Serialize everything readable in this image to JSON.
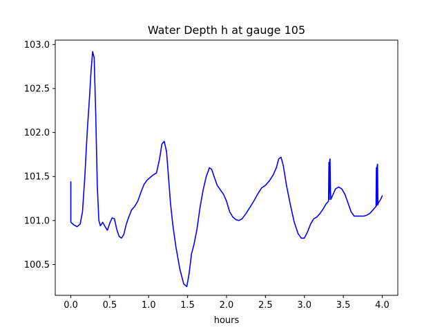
{
  "chart_data": {
    "type": "line",
    "title": "Water Depth h at gauge 105",
    "xlabel": "hours",
    "ylabel": "",
    "xlim": [
      -0.2,
      4.2
    ],
    "ylim": [
      100.15,
      103.05
    ],
    "xticks": [
      0.0,
      0.5,
      1.0,
      1.5,
      2.0,
      2.5,
      3.0,
      3.5,
      4.0
    ],
    "xtick_labels": [
      "0.0",
      "0.5",
      "1.0",
      "1.5",
      "2.0",
      "2.5",
      "3.0",
      "3.5",
      "4.0"
    ],
    "yticks": [
      100.5,
      101.0,
      101.5,
      102.0,
      102.5,
      103.0
    ],
    "ytick_labels": [
      "100.5",
      "101.0",
      "101.5",
      "102.0",
      "102.5",
      "103.0"
    ],
    "grid": false,
    "series": [
      {
        "color": "#0000ff",
        "x": [
          0.0,
          0.0,
          0.0,
          0.04,
          0.08,
          0.12,
          0.15,
          0.18,
          0.21,
          0.24,
          0.26,
          0.28,
          0.3,
          0.32,
          0.34,
          0.36,
          0.38,
          0.41,
          0.44,
          0.47,
          0.5,
          0.53,
          0.56,
          0.59,
          0.62,
          0.65,
          0.68,
          0.71,
          0.74,
          0.78,
          0.82,
          0.86,
          0.9,
          0.94,
          0.98,
          1.02,
          1.06,
          1.1,
          1.14,
          1.17,
          1.2,
          1.23,
          1.25,
          1.28,
          1.31,
          1.35,
          1.4,
          1.45,
          1.49,
          1.52,
          1.55,
          1.58,
          1.62,
          1.66,
          1.7,
          1.74,
          1.78,
          1.81,
          1.84,
          1.88,
          1.92,
          1.96,
          2.0,
          2.04,
          2.08,
          2.12,
          2.16,
          2.2,
          2.25,
          2.3,
          2.35,
          2.4,
          2.45,
          2.5,
          2.55,
          2.6,
          2.64,
          2.67,
          2.7,
          2.73,
          2.77,
          2.82,
          2.87,
          2.92,
          2.96,
          3.0,
          3.04,
          3.08,
          3.12,
          3.16,
          3.2,
          3.24,
          3.28,
          3.31,
          3.315,
          3.32,
          3.325,
          3.33,
          3.335,
          3.34,
          3.37,
          3.4,
          3.44,
          3.48,
          3.52,
          3.56,
          3.6,
          3.64,
          3.68,
          3.72,
          3.76,
          3.8,
          3.84,
          3.88,
          3.92,
          3.925,
          3.93,
          3.935,
          3.94,
          3.945,
          3.95,
          3.98,
          4.0
        ],
        "y": [
          101.44,
          101.0,
          100.98,
          100.95,
          100.93,
          100.96,
          101.1,
          101.5,
          102.0,
          102.4,
          102.7,
          102.92,
          102.85,
          102.2,
          101.4,
          101.0,
          100.94,
          100.98,
          100.93,
          100.89,
          100.97,
          101.03,
          101.02,
          100.9,
          100.82,
          100.8,
          100.84,
          100.95,
          101.03,
          101.12,
          101.16,
          101.22,
          101.32,
          101.41,
          101.46,
          101.49,
          101.52,
          101.54,
          101.7,
          101.87,
          101.9,
          101.78,
          101.55,
          101.2,
          100.95,
          100.7,
          100.45,
          100.28,
          100.25,
          100.4,
          100.62,
          100.72,
          100.9,
          101.15,
          101.35,
          101.5,
          101.6,
          101.58,
          101.5,
          101.4,
          101.35,
          101.3,
          101.22,
          101.1,
          101.04,
          101.01,
          101.0,
          101.02,
          101.08,
          101.15,
          101.22,
          101.3,
          101.37,
          101.4,
          101.45,
          101.52,
          101.6,
          101.7,
          101.72,
          101.62,
          101.4,
          101.18,
          100.98,
          100.85,
          100.8,
          100.8,
          100.87,
          100.96,
          101.02,
          101.04,
          101.08,
          101.13,
          101.19,
          101.22,
          101.66,
          101.24,
          101.68,
          101.7,
          101.35,
          101.24,
          101.3,
          101.36,
          101.38,
          101.36,
          101.3,
          101.2,
          101.1,
          101.05,
          101.05,
          101.05,
          101.05,
          101.06,
          101.08,
          101.12,
          101.16,
          101.6,
          101.17,
          101.62,
          101.64,
          101.18,
          101.2,
          101.24,
          101.28
        ]
      }
    ]
  }
}
